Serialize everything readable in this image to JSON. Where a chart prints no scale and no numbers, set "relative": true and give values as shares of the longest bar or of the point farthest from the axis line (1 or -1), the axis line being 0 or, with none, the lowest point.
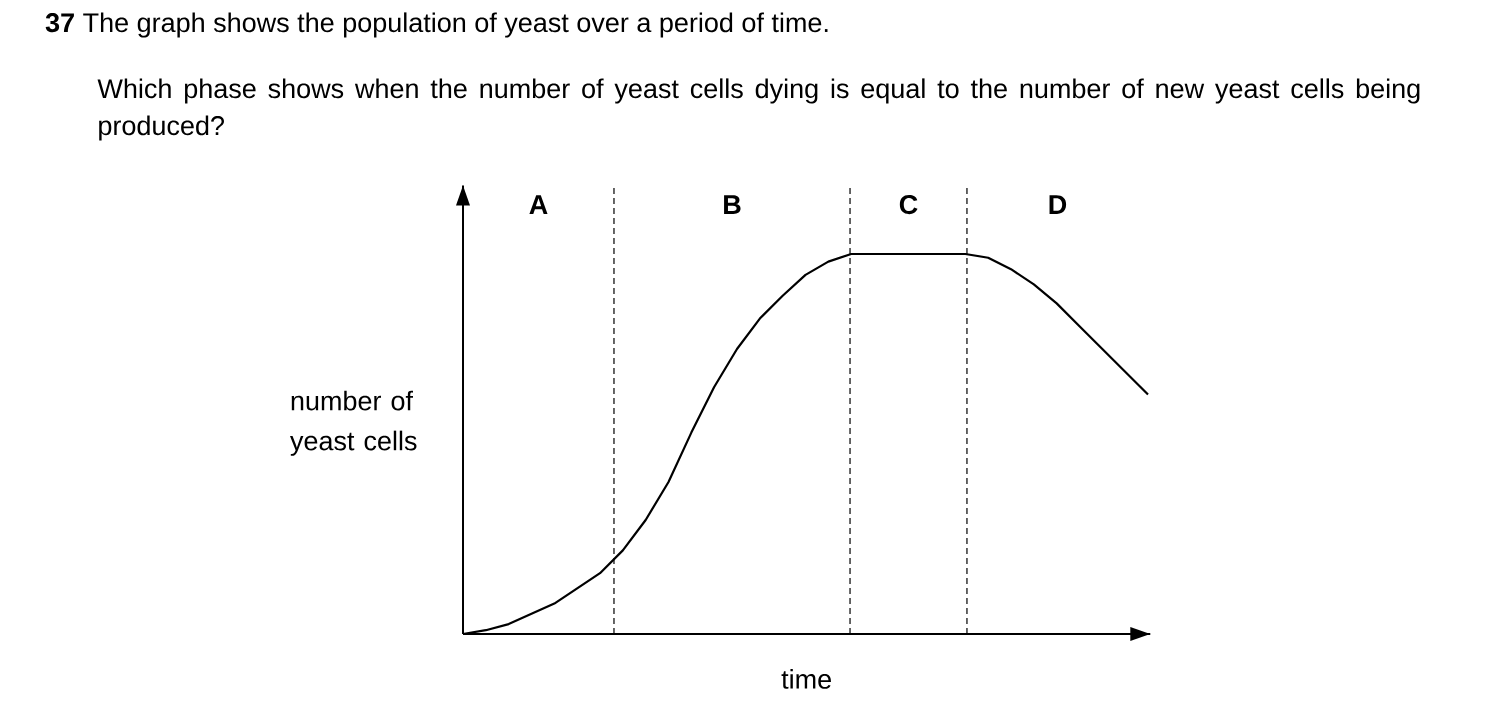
{
  "chart_data": {
    "type": "line",
    "relative": true,
    "title": "**37**  The graph shows the population of yeast over a period of time.",
    "subtitle": "Which phase shows when the number of yeast cells dying is equal to the number of new yeast cells being produced?",
    "xlabel": "time",
    "ylabel": "number of yeast cells",
    "categories": [
      null,
      null,
      null,
      null,
      null,
      null,
      null,
      null,
      null,
      null,
      null,
      null,
      null,
      null,
      null,
      null,
      null,
      null,
      null,
      null,
      null,
      null,
      null,
      null,
      null,
      null,
      null,
      null,
      null,
      null,
      null
    ],
    "values": [
      0,
      0.01,
      0.026,
      0.053,
      0.08,
      0.12,
      0.16,
      0.22,
      0.3,
      0.4,
      0.53,
      0.65,
      0.75,
      0.83,
      0.89,
      0.945,
      0.98,
      1,
      1,
      1,
      1,
      1,
      1,
      0.99,
      0.96,
      0.92,
      0.87,
      0.81,
      0.75,
      0.69,
      0.63
    ],
    "color": "#000000",
    "annotations": [
      "A",
      "B",
      "C",
      "D"
    ]
  }
}
